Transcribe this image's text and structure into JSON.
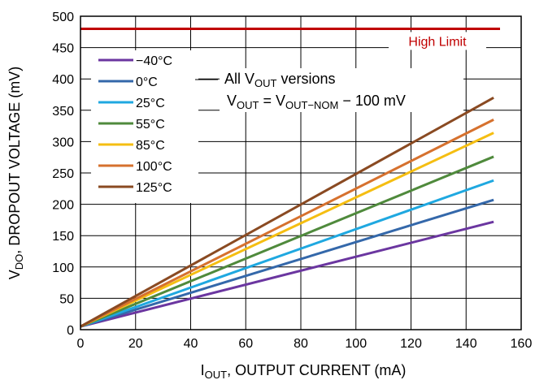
{
  "chart_data": {
    "type": "line",
    "xlabel": {
      "main": "I",
      "sub": "OUT",
      "rest": ", OUTPUT CURRENT (mA)"
    },
    "ylabel": {
      "main": "V",
      "sub": "DO",
      "rest": ", DROPOUT VOLTAGE (mV)"
    },
    "xlim": [
      0,
      160
    ],
    "ylim": [
      0,
      500
    ],
    "x_ticks": [
      0,
      20,
      40,
      60,
      80,
      100,
      120,
      140,
      160
    ],
    "y_ticks": [
      0,
      50,
      100,
      150,
      200,
      250,
      300,
      350,
      400,
      450,
      500
    ],
    "grid": true,
    "legend_position": "top-left",
    "series": [
      {
        "name": "−40°C",
        "color": "#6b36a0",
        "x": [
          0,
          150
        ],
        "y": [
          5,
          172
        ]
      },
      {
        "name": "0°C",
        "color": "#3468aa",
        "x": [
          0,
          150
        ],
        "y": [
          5,
          207
        ]
      },
      {
        "name": "25°C",
        "color": "#1fa8e0",
        "x": [
          0,
          150
        ],
        "y": [
          5,
          238
        ]
      },
      {
        "name": "55°C",
        "color": "#4f8a3c",
        "x": [
          0,
          150
        ],
        "y": [
          5,
          276
        ]
      },
      {
        "name": "85°C",
        "color": "#f5be12",
        "x": [
          0,
          150
        ],
        "y": [
          5,
          314
        ]
      },
      {
        "name": "100°C",
        "color": "#d6712e",
        "x": [
          0,
          150
        ],
        "y": [
          5,
          335
        ]
      },
      {
        "name": "125°C",
        "color": "#8a4a22",
        "x": [
          0,
          150
        ],
        "y": [
          5,
          370
        ]
      }
    ],
    "limit": {
      "label": "High Limit",
      "value": 480,
      "color": "#c00000"
    },
    "annotation": {
      "line1": {
        "pre": "All V",
        "sub": "OUT",
        "post": " versions"
      },
      "line2": {
        "v1": "V",
        "s1": "OUT",
        "eq": " = V",
        "s2": "OUT−NOM",
        "post": " − 100 mV"
      }
    }
  }
}
